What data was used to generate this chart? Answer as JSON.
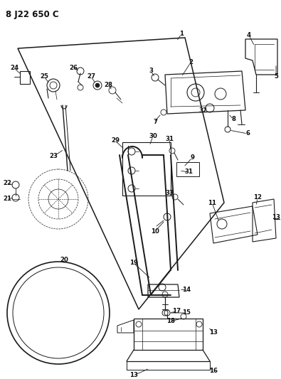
{
  "title": "8 J22 650 C",
  "background_color": "#ffffff",
  "line_color": "#1a1a1a",
  "text_color": "#111111",
  "fig_width": 3.95,
  "fig_height": 5.33,
  "dpi": 100
}
